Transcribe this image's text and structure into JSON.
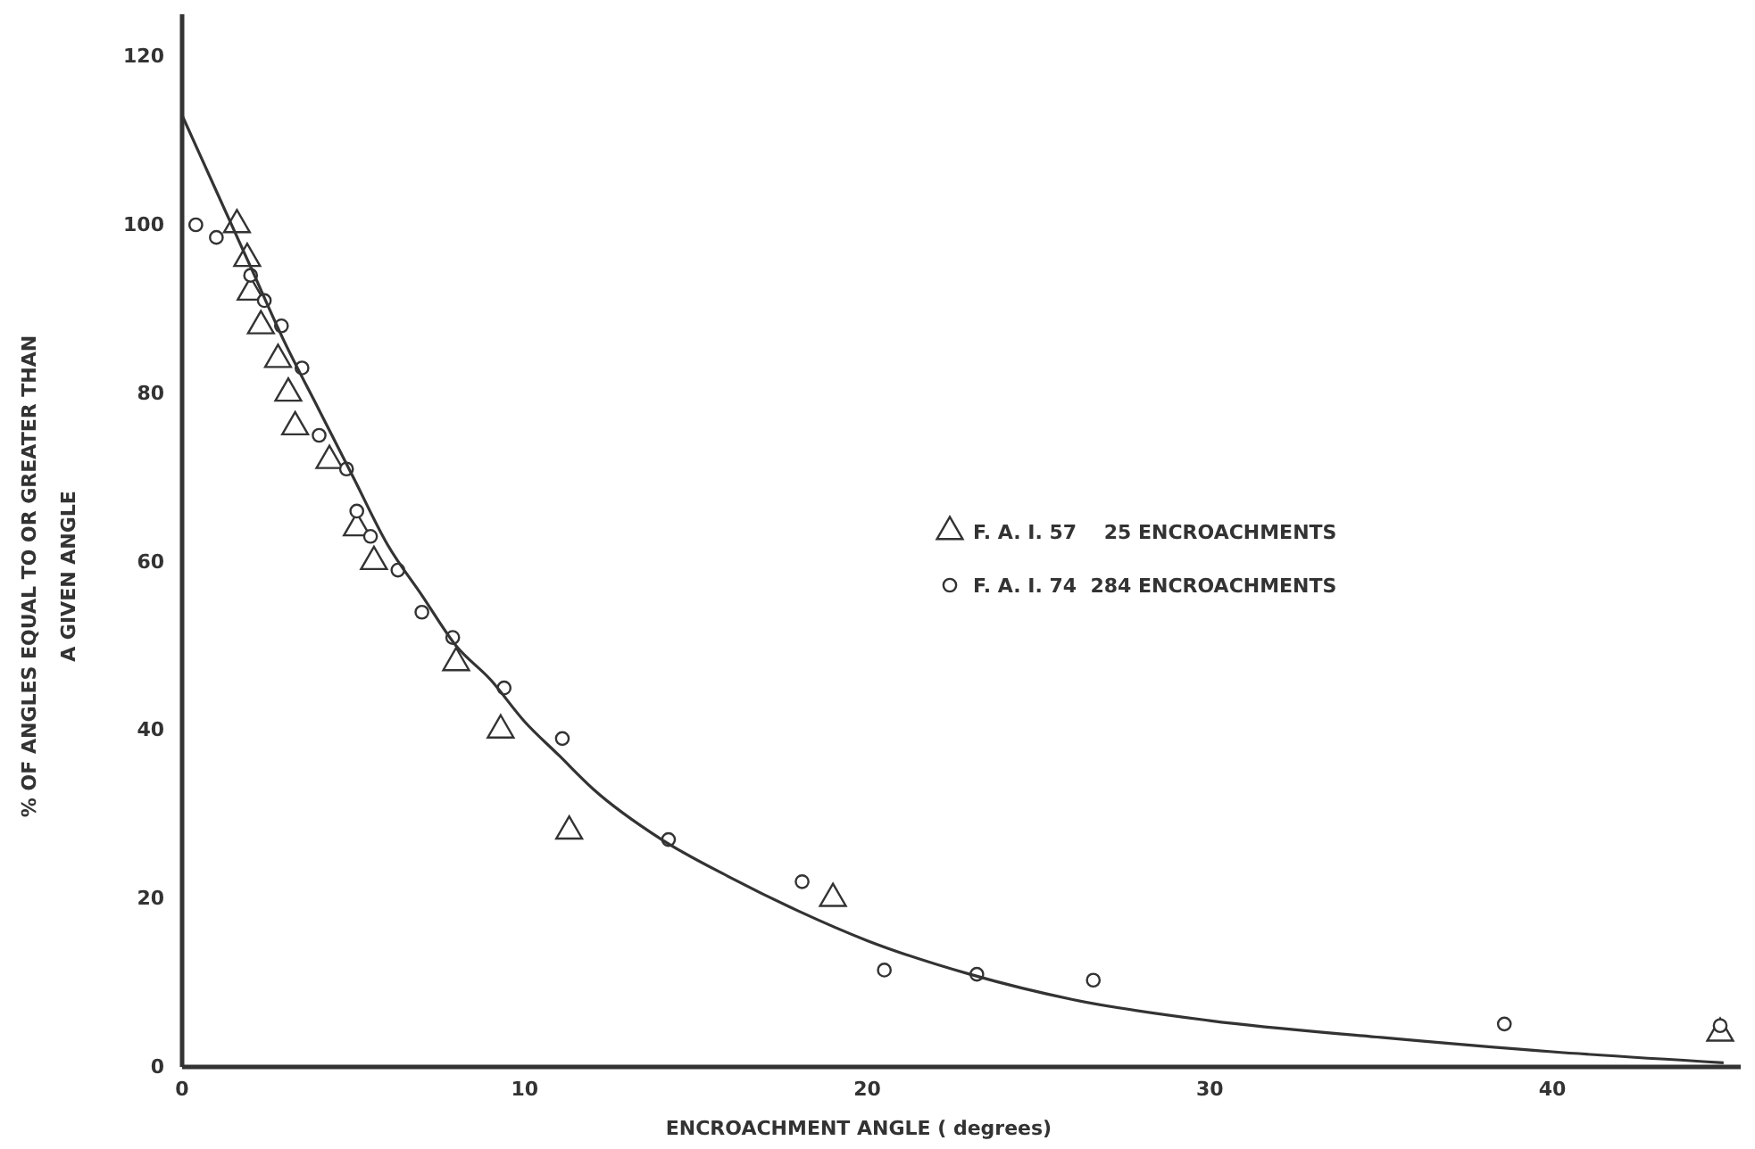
{
  "chart_data": {
    "type": "scatter",
    "xlabel": "ENCROACHMENT  ANGLE ( degrees)",
    "ylabel": "% OF ANGLES EQUAL TO OR GREATER THAN\nA GIVEN ANGLE",
    "xlim": [
      0,
      45.5
    ],
    "ylim": [
      0,
      125
    ],
    "xticks": [
      0,
      10,
      20,
      30,
      40
    ],
    "yticks": [
      0,
      20,
      40,
      60,
      80,
      100,
      120
    ],
    "grid": false,
    "legend": "right",
    "series": [
      {
        "name": "F. A. I. 57    25 ENCROACHMENTS",
        "marker": "triangle",
        "color": "#333333",
        "x": [
          1.6,
          1.9,
          2.0,
          2.3,
          2.8,
          3.1,
          3.3,
          4.3,
          5.1,
          5.6,
          8.0,
          9.3,
          11.3,
          19.0,
          44.9
        ],
        "values": [
          100,
          96,
          92,
          88,
          84,
          80,
          76,
          72,
          64,
          60,
          48,
          40,
          28,
          20,
          4
        ]
      },
      {
        "name": "F. A. I. 74  284 ENCROACHMENTS",
        "marker": "circle",
        "color": "#333333",
        "x": [
          0.4,
          1.0,
          2.0,
          2.4,
          2.9,
          3.5,
          4.0,
          4.8,
          5.1,
          5.5,
          6.3,
          7.0,
          7.9,
          9.4,
          11.1,
          14.2,
          18.1,
          20.5,
          23.2,
          26.6,
          38.6,
          44.9
        ],
        "values": [
          100,
          98.5,
          94,
          91,
          88,
          83,
          75,
          71,
          66,
          63,
          59,
          54,
          51,
          45,
          39,
          27,
          22,
          11.5,
          11,
          10.3,
          5.1,
          4.9
        ]
      },
      {
        "type": "line",
        "marker": "none",
        "color": "#333333",
        "x": [
          0,
          1,
          2,
          3,
          4,
          5,
          6,
          7,
          8,
          9,
          10,
          11,
          12,
          14,
          16,
          18,
          20,
          23,
          26,
          30,
          35,
          40,
          45
        ],
        "values": [
          113,
          104,
          95,
          86,
          78,
          70,
          62,
          56,
          50,
          46,
          41,
          37,
          33,
          27,
          22.5,
          18.5,
          15,
          11,
          8,
          5.5,
          3.5,
          1.8,
          0.5
        ]
      }
    ]
  }
}
